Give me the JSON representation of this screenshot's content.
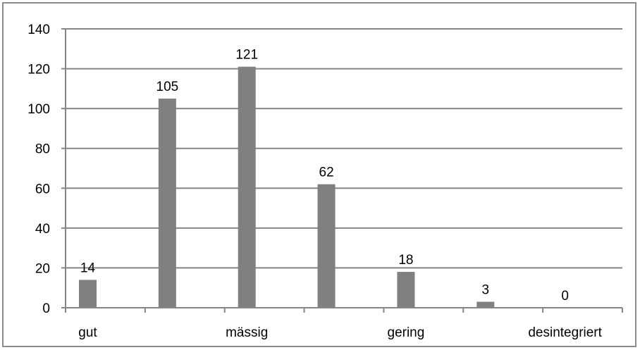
{
  "chart_data": {
    "type": "bar",
    "categories": [
      "",
      "",
      "",
      "",
      "",
      "",
      ""
    ],
    "category_labels": [
      "gut",
      "",
      "mässig",
      "",
      "gering",
      "",
      "desintegriert"
    ],
    "values": [
      14,
      105,
      121,
      62,
      18,
      3,
      0
    ],
    "title": "",
    "xlabel": "",
    "ylabel": "",
    "ylim": [
      0,
      140
    ],
    "yticks": [
      0,
      20,
      40,
      60,
      80,
      100,
      120,
      140
    ],
    "grid": true,
    "legend": "none",
    "bar_color": "#808080",
    "grid_color": "#868686"
  }
}
